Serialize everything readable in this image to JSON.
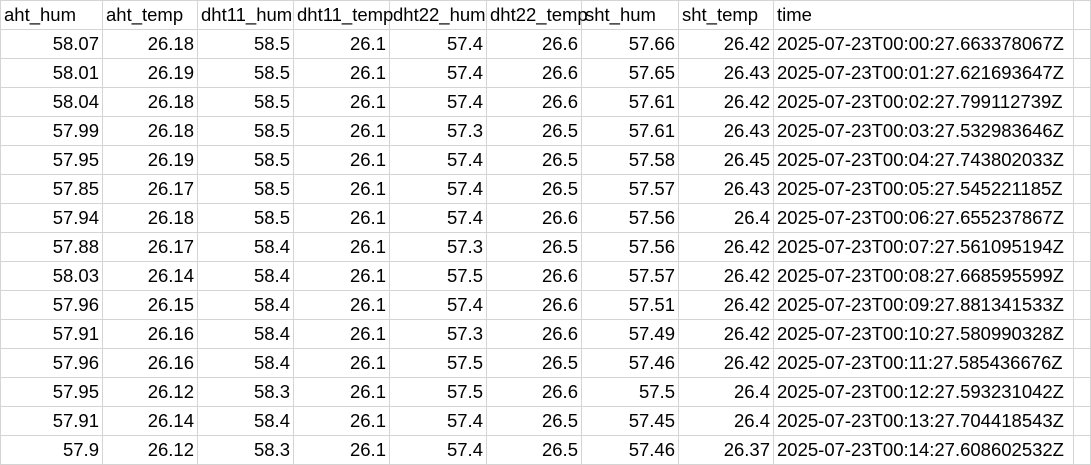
{
  "table": {
    "header": [
      "aht_hum",
      "aht_temp",
      "dht11_hum",
      "dht11_temp",
      "dht22_hum",
      "dht22_temp",
      "sht_hum",
      "sht_temp",
      "time"
    ],
    "rows": [
      [
        "58.07",
        "26.18",
        "58.5",
        "26.1",
        "57.4",
        "26.6",
        "57.66",
        "26.42",
        "2025-07-23T00:00:27.663378067Z"
      ],
      [
        "58.01",
        "26.19",
        "58.5",
        "26.1",
        "57.4",
        "26.6",
        "57.65",
        "26.43",
        "2025-07-23T00:01:27.621693647Z"
      ],
      [
        "58.04",
        "26.18",
        "58.5",
        "26.1",
        "57.4",
        "26.6",
        "57.61",
        "26.42",
        "2025-07-23T00:02:27.799112739Z"
      ],
      [
        "57.99",
        "26.18",
        "58.5",
        "26.1",
        "57.3",
        "26.5",
        "57.61",
        "26.43",
        "2025-07-23T00:03:27.532983646Z"
      ],
      [
        "57.95",
        "26.19",
        "58.5",
        "26.1",
        "57.4",
        "26.5",
        "57.58",
        "26.45",
        "2025-07-23T00:04:27.743802033Z"
      ],
      [
        "57.85",
        "26.17",
        "58.5",
        "26.1",
        "57.4",
        "26.5",
        "57.57",
        "26.43",
        "2025-07-23T00:05:27.545221185Z"
      ],
      [
        "57.94",
        "26.18",
        "58.5",
        "26.1",
        "57.4",
        "26.6",
        "57.56",
        "26.4",
        "2025-07-23T00:06:27.655237867Z"
      ],
      [
        "57.88",
        "26.17",
        "58.4",
        "26.1",
        "57.3",
        "26.5",
        "57.56",
        "26.42",
        "2025-07-23T00:07:27.561095194Z"
      ],
      [
        "58.03",
        "26.14",
        "58.4",
        "26.1",
        "57.5",
        "26.6",
        "57.57",
        "26.42",
        "2025-07-23T00:08:27.668595599Z"
      ],
      [
        "57.96",
        "26.15",
        "58.4",
        "26.1",
        "57.4",
        "26.6",
        "57.51",
        "26.42",
        "2025-07-23T00:09:27.881341533Z"
      ],
      [
        "57.91",
        "26.16",
        "58.4",
        "26.1",
        "57.3",
        "26.6",
        "57.49",
        "26.42",
        "2025-07-23T00:10:27.580990328Z"
      ],
      [
        "57.96",
        "26.16",
        "58.4",
        "26.1",
        "57.5",
        "26.5",
        "57.46",
        "26.42",
        "2025-07-23T00:11:27.585436676Z"
      ],
      [
        "57.95",
        "26.12",
        "58.3",
        "26.1",
        "57.5",
        "26.6",
        "57.5",
        "26.4",
        "2025-07-23T00:12:27.593231042Z"
      ],
      [
        "57.91",
        "26.14",
        "58.4",
        "26.1",
        "57.4",
        "26.5",
        "57.45",
        "26.4",
        "2025-07-23T00:13:27.704418543Z"
      ],
      [
        "57.9",
        "26.12",
        "58.3",
        "26.1",
        "57.4",
        "26.5",
        "57.46",
        "26.37",
        "2025-07-23T00:14:27.608602532Z"
      ]
    ]
  }
}
